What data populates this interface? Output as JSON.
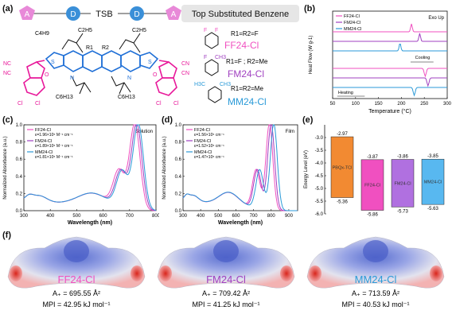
{
  "panel_labels": {
    "a": "(a)",
    "b": "(b)",
    "c": "(c)",
    "d": "(d)",
    "e": "(e)",
    "f": "(f)"
  },
  "scheme": {
    "blocks": [
      "A",
      "D",
      "TSB",
      "D",
      "A"
    ],
    "title": "Top Substituted Benzene",
    "colors": {
      "acceptor": "#e889d8",
      "donor": "#3a8fd8",
      "tsb_bg": "#e6e6e6"
    }
  },
  "structure": {
    "labels": {
      "r1": "R1",
      "r2": "R2",
      "s": "S",
      "n": "N",
      "cn": "CN",
      "nc": "NC",
      "o": "O",
      "cl": "Cl",
      "c2h5": "C2H5",
      "c4h9": "C4H9",
      "c6h13": "C6H13"
    },
    "colors": {
      "core": "#1f6fd6",
      "acceptor": "#e8189a",
      "chain": "#111111"
    }
  },
  "substituents": [
    {
      "formula": "R1=R2=F",
      "name": "FF24-Cl",
      "color": "#f050c0",
      "atoms": [
        "F",
        "F"
      ]
    },
    {
      "formula": "R1=F ; R2=Me",
      "name": "FM24-Cl",
      "color": "#a040c0",
      "atoms": [
        "F",
        "CH3"
      ]
    },
    {
      "formula": "R1=R2=Me",
      "name": "MM24-Cl",
      "color": "#2a9ad8",
      "atoms": [
        "H3C",
        "CH3"
      ]
    }
  ],
  "chart_b": {
    "type": "line",
    "title": "Exo Up",
    "xlabel": "Temperature (°C)",
    "ylabel": "Heat Flow (W g-1)",
    "xlim": [
      50,
      300
    ],
    "xticks": [
      50,
      100,
      150,
      200,
      250,
      300
    ],
    "annotations": [
      "Cooling",
      "Heating"
    ],
    "series": [
      {
        "name": "FF24-Cl",
        "color": "#f050c0",
        "peaks_heating": [
          252
        ],
        "peaks_cooling": [
          222
        ]
      },
      {
        "name": "FM24-Cl",
        "color": "#a040c0",
        "peaks_heating": [
          258
        ],
        "peaks_cooling": [
          240
        ]
      },
      {
        "name": "MM24-Cl",
        "color": "#2a9ad8",
        "peaks_heating": [
          228
        ],
        "peaks_cooling": [
          197
        ]
      }
    ]
  },
  "chart_c": {
    "type": "line",
    "title": "Solution",
    "xlabel": "Wavelength (nm)",
    "ylabel": "Normalized Absorbance (a.u.)",
    "xlim": [
      300,
      800
    ],
    "ylim": [
      0.0,
      1.0
    ],
    "xticks": [
      300,
      400,
      500,
      600,
      700,
      800
    ],
    "yticks": [
      "0.0",
      "0.2",
      "0.4",
      "0.6",
      "0.8",
      "1.0"
    ],
    "series": [
      {
        "name": "FF24-Cl",
        "epsilon": "ε=1.96×10⁵ M⁻¹ cm⁻¹",
        "color": "#f050c0",
        "peak": 720,
        "shoulder": 660
      },
      {
        "name": "FM24-Cl",
        "epsilon": "ε=1.89×10⁵ M⁻¹ cm⁻¹",
        "color": "#a040c0",
        "peak": 727,
        "shoulder": 667
      },
      {
        "name": "MM24-Cl",
        "epsilon": "ε=1.81×10⁵ M⁻¹ cm⁻¹",
        "color": "#2a9ad8",
        "peak": 733,
        "shoulder": 672
      }
    ]
  },
  "chart_d": {
    "type": "line",
    "title": "Film",
    "xlabel": "Wavelength (nm)",
    "ylabel": "Normalized Absorbance (a.u.)",
    "xlim": [
      300,
      950
    ],
    "ylim": [
      0.0,
      1.0
    ],
    "xticks": [
      300,
      400,
      500,
      600,
      700,
      800,
      900
    ],
    "yticks": [
      "0.0",
      "0.2",
      "0.4",
      "0.6",
      "0.8",
      "1.0"
    ],
    "series": [
      {
        "name": "FF24-Cl",
        "epsilon": "ε=1.56×10⁵ cm⁻¹",
        "color": "#f050c0",
        "peak": 790,
        "shoulder": 715
      },
      {
        "name": "FM24-Cl",
        "epsilon": "ε=1.52×10⁵ cm⁻¹",
        "color": "#a040c0",
        "peak": 800,
        "shoulder": 722
      },
      {
        "name": "MM24-Cl",
        "epsilon": "ε=1.47×10⁵ cm⁻¹",
        "color": "#2a9ad8",
        "peak": 815,
        "shoulder": 735
      }
    ]
  },
  "chart_e": {
    "type": "bar",
    "ylabel": "Energy Level (eV)",
    "ylim": [
      -6.0,
      -2.5
    ],
    "yticks": [
      "-3.0",
      "-3.5",
      "-4.0",
      "-4.5",
      "-5.0",
      "-5.5",
      "-6.0"
    ],
    "bars": [
      {
        "name": "PBQx-TCl",
        "lumo": -2.97,
        "homo": -5.36,
        "lumo_label": "-2.97",
        "homo_label": "-5.36",
        "color": "#f28a32"
      },
      {
        "name": "FF24-Cl",
        "lumo": -3.87,
        "homo": -5.86,
        "lumo_label": "-3.87",
        "homo_label": "-5.86",
        "color": "#f050c0"
      },
      {
        "name": "FM24-Cl",
        "lumo": -3.86,
        "homo": -5.73,
        "lumo_label": "-3.86",
        "homo_label": "-5.73",
        "color": "#b070e0"
      },
      {
        "name": "MM24-Cl",
        "lumo": -3.85,
        "homo": -5.63,
        "lumo_label": "-3.85",
        "homo_label": "-5.63",
        "color": "#58b8f0"
      }
    ]
  },
  "esp_maps": [
    {
      "name": "FF24-Cl",
      "area": "A₊ = 695.55 Å²",
      "mpi": "MPI = 42.95 kJ mol⁻¹",
      "color": "#f050c0"
    },
    {
      "name": "FM24-Cl",
      "area": "A₊ = 709.42 Å²",
      "mpi": "MPI = 41.25 kJ mol⁻¹",
      "color": "#a040c0"
    },
    {
      "name": "MM24-Cl",
      "area": "A₊ = 713.59 Å²",
      "mpi": "MPI = 40.53 kJ mol⁻¹",
      "color": "#2a9ad8"
    }
  ]
}
